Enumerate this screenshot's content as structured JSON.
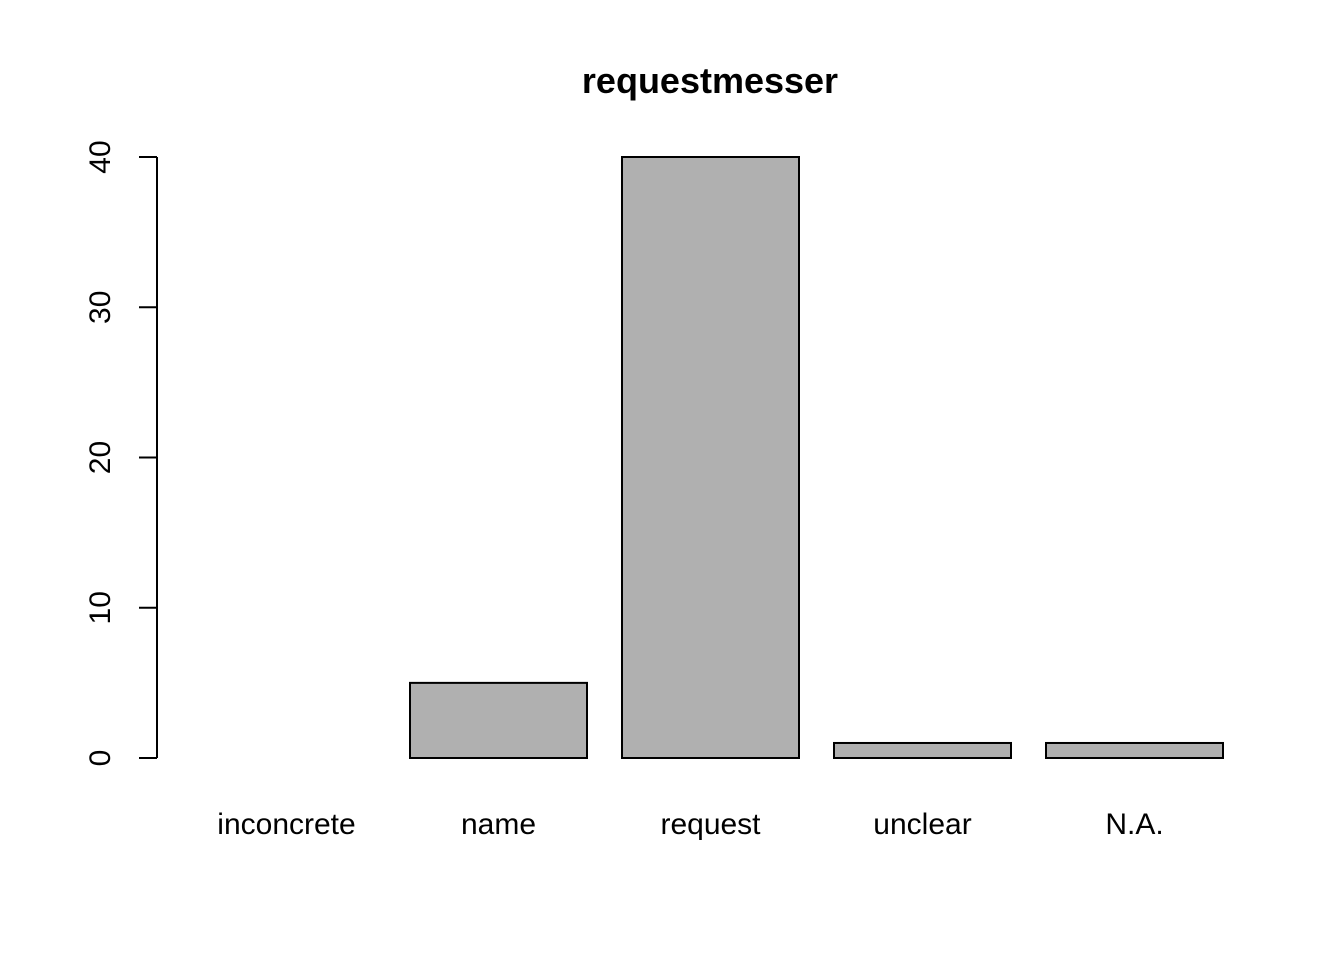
{
  "chart_data": {
    "type": "bar",
    "title": "requestmesser",
    "categories": [
      "inconcrete",
      "name",
      "request",
      "unclear",
      "N.A."
    ],
    "values": [
      0,
      5,
      40,
      1,
      1
    ],
    "yticks": [
      0,
      10,
      20,
      30,
      40
    ],
    "ylim": [
      0,
      40
    ],
    "xlabel": "",
    "ylabel": "",
    "grid": false,
    "bar_color": "#b0b0b0",
    "border_color": "#000000"
  }
}
